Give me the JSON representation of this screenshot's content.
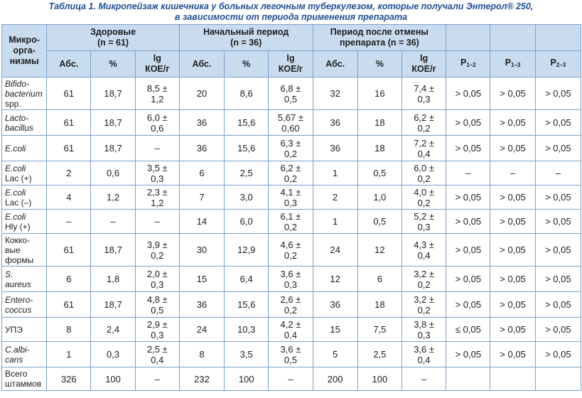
{
  "caption": {
    "line1": "Таблица 1. Микропейзаж кишечника у больных легочным туберкулезом, которые получали Энтерол® 250,",
    "line2": "в зависимости от периода применения препарата"
  },
  "header": {
    "micro": [
      "Микро-",
      "орга-",
      "низмы"
    ],
    "healthy": [
      "Здоровые",
      "(n = 61)"
    ],
    "initial": [
      "Начальный период",
      "(n = 36)"
    ],
    "after": [
      "Период после отмены",
      "препарата (n = 36)"
    ],
    "abs": "Абс.",
    "pct": "%",
    "lg": [
      "lg",
      "КОЕ/г"
    ],
    "p": [
      {
        "letter": "P",
        "sub": "1–2"
      },
      {
        "letter": "P",
        "sub": "1–3"
      },
      {
        "letter": "P",
        "sub": "2–3"
      }
    ]
  },
  "rows": [
    {
      "name": [
        "Bifido-",
        "bacterium",
        "spp."
      ],
      "italic": [
        true,
        true,
        false
      ],
      "h": [
        "61",
        "18,7",
        "8,5 ±",
        "1,2"
      ],
      "i": [
        "20",
        "8,6",
        "6,8 ±",
        "0,5"
      ],
      "a": [
        "32",
        "16",
        "7,4 ±",
        "0,3"
      ],
      "p": [
        "> 0,05",
        "> 0,05",
        "> 0,05"
      ]
    },
    {
      "name": [
        "Lacto-",
        "bacillus"
      ],
      "italic": [
        true,
        true
      ],
      "h": [
        "61",
        "18,7",
        "6,0 ±",
        "0,6"
      ],
      "i": [
        "36",
        "15,6",
        "5,67 ±",
        "0,60"
      ],
      "a": [
        "36",
        "18",
        "6,2 ±",
        "0,2"
      ],
      "p": [
        "> 0,05",
        "> 0,05",
        "> 0,05"
      ]
    },
    {
      "name": [
        "E.coli"
      ],
      "italic": [
        true
      ],
      "h": [
        "61",
        "18,7",
        "–",
        ""
      ],
      "i": [
        "36",
        "15,6",
        "6,3 ±",
        "0,2"
      ],
      "a": [
        "36",
        "18",
        "7,2 ±",
        "0,4"
      ],
      "p": [
        "> 0,05",
        "> 0,05",
        "> 0,05"
      ]
    },
    {
      "name": [
        "E.coli",
        "Lac (+)"
      ],
      "italic": [
        true,
        false
      ],
      "h": [
        "2",
        "0,6",
        "3,5 ±",
        "0,3"
      ],
      "i": [
        "6",
        "2,5",
        "6,2 ±",
        "0,2"
      ],
      "a": [
        "1",
        "0,5",
        "6,0 ±",
        "0,2"
      ],
      "p": [
        "–",
        "–",
        "–"
      ]
    },
    {
      "name": [
        "E.coli",
        "Lac (–)"
      ],
      "italic": [
        true,
        false
      ],
      "h": [
        "4",
        "1,2",
        "2,3 ±",
        "1,2"
      ],
      "i": [
        "7",
        "3,0",
        "4,1 ±",
        "0,3"
      ],
      "a": [
        "2",
        "1,0",
        "4,0 ±",
        "0,2"
      ],
      "p": [
        "> 0,05",
        "> 0,05",
        "> 0,05"
      ]
    },
    {
      "name": [
        "E.coli",
        "Hly (+)"
      ],
      "italic": [
        true,
        false
      ],
      "h": [
        "–",
        "–",
        "–",
        ""
      ],
      "i": [
        "14",
        "6,0",
        "6,1 ±",
        "0,2"
      ],
      "a": [
        "1",
        "0,5",
        "5,2 ±",
        "0,3"
      ],
      "p": [
        "> 0,05",
        "> 0,05",
        "> 0,05"
      ]
    },
    {
      "name": [
        "Кокко-",
        "вые",
        "формы"
      ],
      "italic": [
        false,
        false,
        false
      ],
      "h": [
        "61",
        "18,7",
        "3,9 ±",
        "0,2"
      ],
      "i": [
        "30",
        "12,9",
        "4,6 ±",
        "0,2"
      ],
      "a": [
        "24",
        "12",
        "4,3 ±",
        "0,4"
      ],
      "p": [
        "> 0,05",
        "> 0,05",
        "> 0,05"
      ]
    },
    {
      "name": [
        "S.",
        "aureus"
      ],
      "italic": [
        true,
        true
      ],
      "h": [
        "6",
        "1,8",
        "2,0 ±",
        "0,3"
      ],
      "i": [
        "15",
        "6,4",
        "3,6 ±",
        "0,3"
      ],
      "a": [
        "12",
        "6",
        "3,2 ±",
        "0,2"
      ],
      "p": [
        "> 0,05",
        "> 0,05",
        "> 0,05"
      ]
    },
    {
      "name": [
        "Entero-",
        "coccus"
      ],
      "italic": [
        true,
        true
      ],
      "h": [
        "61",
        "18,7",
        "4,8 ±",
        "0,5"
      ],
      "i": [
        "36",
        "15,6",
        "2,6 ±",
        "0,2"
      ],
      "a": [
        "36",
        "18",
        "3,2 ±",
        "0,2"
      ],
      "p": [
        "> 0,05",
        "> 0,05",
        "> 0,05"
      ]
    },
    {
      "name": [
        "УПЭ"
      ],
      "italic": [
        false
      ],
      "h": [
        "8",
        "2,4",
        "2,9 ±",
        "0,3"
      ],
      "i": [
        "24",
        "10,3",
        "4,2 ±",
        "0,4"
      ],
      "a": [
        "15",
        "7,5",
        "3,8 ±",
        "0,3"
      ],
      "p": [
        "≤ 0,05",
        "> 0,05",
        "> 0,05"
      ]
    },
    {
      "name": [
        "C.albi-",
        "cans"
      ],
      "italic": [
        true,
        true
      ],
      "h": [
        "1",
        "0,3",
        "2,5 ±",
        "0,4"
      ],
      "i": [
        "8",
        "3,5",
        "3,6 ±",
        "0,5"
      ],
      "a": [
        "5",
        "2,5",
        "3,6 ±",
        "0,4"
      ],
      "p": [
        "> 0,05",
        "> 0,05",
        "> 0,05"
      ]
    },
    {
      "name": [
        "Всего",
        "штаммов"
      ],
      "italic": [
        false,
        false
      ],
      "h": [
        "326",
        "100",
        "–",
        ""
      ],
      "i": [
        "232",
        "100",
        "–",
        ""
      ],
      "a": [
        "200",
        "100",
        "–",
        ""
      ],
      "p": [
        "",
        "",
        ""
      ]
    }
  ]
}
